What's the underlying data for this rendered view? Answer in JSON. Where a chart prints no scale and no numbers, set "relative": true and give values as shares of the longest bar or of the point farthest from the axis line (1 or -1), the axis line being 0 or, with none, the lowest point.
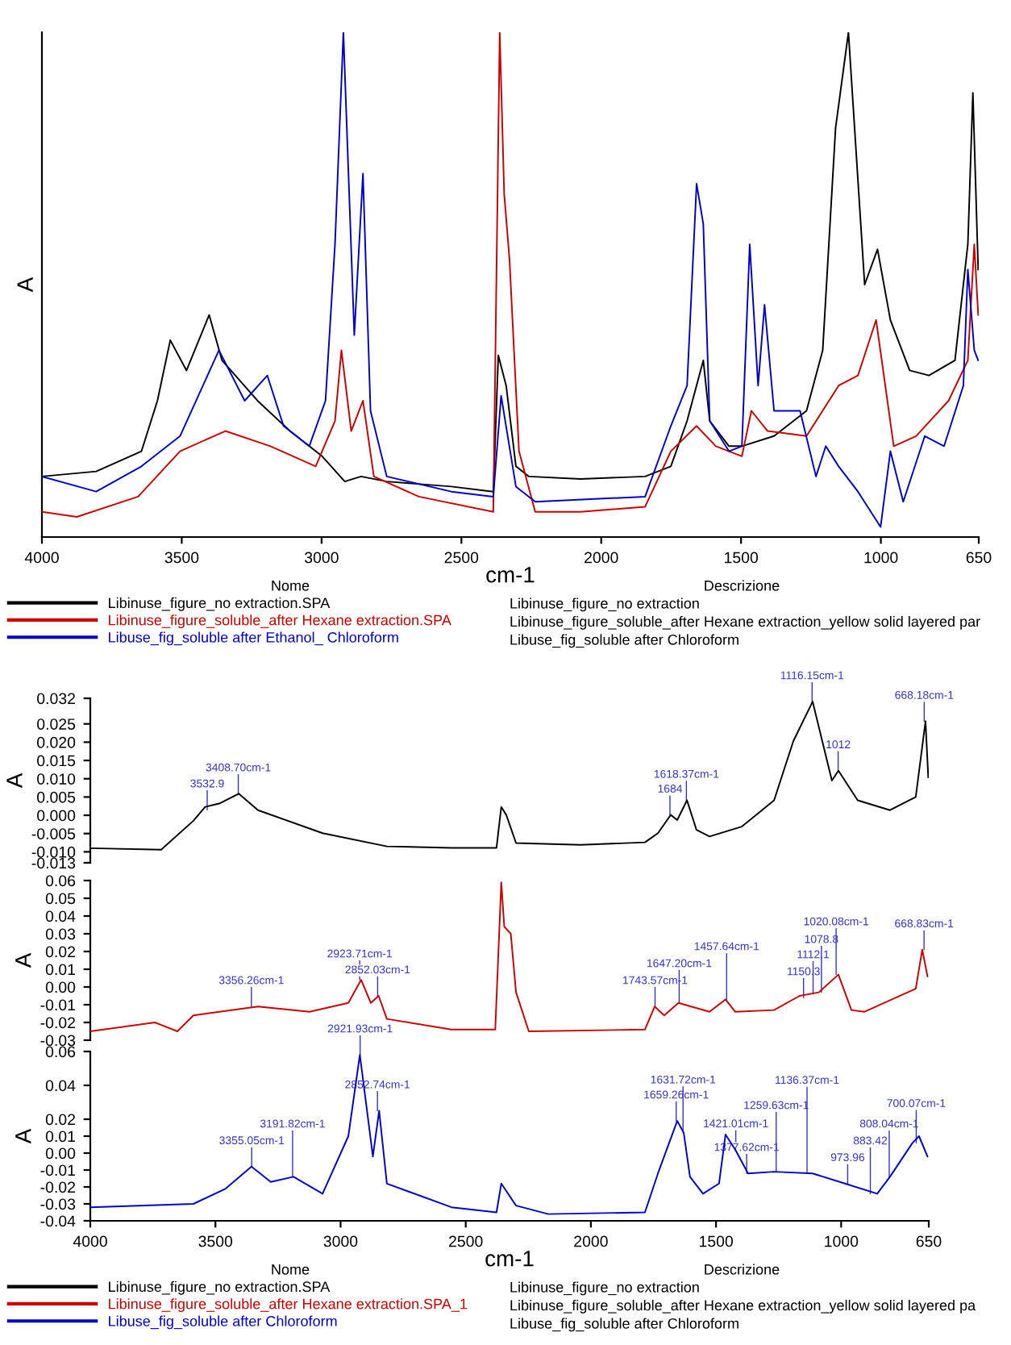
{
  "chart_data": [
    {
      "type": "line",
      "relative": true,
      "ylabel": "A",
      "xlabel": "cm-1",
      "xlim": [
        4000,
        650
      ],
      "xticks": [
        4000,
        3500,
        3000,
        2500,
        2000,
        1500,
        1000,
        650
      ],
      "tick_labels": "x",
      "legend": "bottom",
      "series": [
        {
          "name": "Libinuse_figure_no extraction.SPA",
          "color": "#000000",
          "x": [
            4000,
            3806,
            3644,
            3587,
            3541,
            3483,
            3402,
            3356,
            3229,
            3113,
            2998,
            2917,
            2859,
            2767,
            2536,
            2386,
            2368,
            2340,
            2305,
            2259,
            2074,
            1843,
            1751,
            1693,
            1635,
            1612,
            1543,
            1497,
            1382,
            1266,
            1208,
            1162,
            1116,
            1058,
            1012,
            966,
            897,
            828,
            735,
            689,
            671,
            652
          ],
          "values": [
            0.12,
            0.13,
            0.17,
            0.27,
            0.39,
            0.33,
            0.44,
            0.35,
            0.27,
            0.21,
            0.16,
            0.11,
            0.12,
            0.11,
            0.1,
            0.09,
            0.36,
            0.3,
            0.14,
            0.12,
            0.115,
            0.12,
            0.14,
            0.23,
            0.35,
            0.23,
            0.18,
            0.18,
            0.2,
            0.25,
            0.37,
            0.81,
            1.0,
            0.5,
            0.57,
            0.43,
            0.33,
            0.32,
            0.35,
            0.58,
            0.88,
            0.53
          ]
        },
        {
          "name": "Libinuse_figure_soluble_after Hexane extraction.SPA",
          "color": "#cc0000",
          "x": [
            4000,
            3875,
            3656,
            3506,
            3344,
            3183,
            3021,
            2952,
            2929,
            2894,
            2852,
            2813,
            2652,
            2386,
            2363,
            2347,
            2328,
            2294,
            2236,
            2074,
            1843,
            1751,
            1659,
            1590,
            1497,
            1463,
            1405,
            1266,
            1151,
            1082,
            1017,
            954,
            874,
            758,
            689,
            666,
            652
          ],
          "values": [
            0.05,
            0.04,
            0.08,
            0.17,
            0.21,
            0.18,
            0.14,
            0.23,
            0.37,
            0.21,
            0.27,
            0.12,
            0.08,
            0.05,
            1.0,
            0.68,
            0.55,
            0.17,
            0.05,
            0.05,
            0.06,
            0.17,
            0.22,
            0.18,
            0.16,
            0.25,
            0.21,
            0.2,
            0.3,
            0.32,
            0.43,
            0.18,
            0.2,
            0.27,
            0.35,
            0.58,
            0.44
          ]
        },
        {
          "name": "Libuse_fig_soluble after Ethanol_ Chloroform",
          "color": "#0000cc",
          "x": [
            4000,
            3806,
            3644,
            3506,
            3367,
            3275,
            3194,
            3136,
            3044,
            2986,
            2952,
            2922,
            2883,
            2852,
            2825,
            2767,
            2536,
            2386,
            2358,
            2305,
            2236,
            1843,
            1751,
            1693,
            1659,
            1635,
            1612,
            1543,
            1497,
            1469,
            1439,
            1416,
            1382,
            1289,
            1232,
            1197,
            1151,
            1082,
            1001,
            966,
            920,
            843,
            774,
            705,
            689,
            666,
            652
          ],
          "values": [
            0.12,
            0.09,
            0.14,
            0.2,
            0.37,
            0.27,
            0.32,
            0.22,
            0.18,
            0.27,
            0.58,
            1.0,
            0.4,
            0.72,
            0.25,
            0.12,
            0.09,
            0.08,
            0.28,
            0.1,
            0.07,
            0.08,
            0.22,
            0.3,
            0.7,
            0.62,
            0.23,
            0.17,
            0.18,
            0.58,
            0.3,
            0.46,
            0.25,
            0.25,
            0.12,
            0.18,
            0.14,
            0.09,
            0.02,
            0.17,
            0.07,
            0.2,
            0.18,
            0.3,
            0.53,
            0.37,
            0.35
          ]
        }
      ],
      "annotations": [
        "Nome",
        "Descrizione",
        "Libinuse_figure_no extraction",
        "Libinuse_figure_soluble_after Hexane extraction_yellow solid layered par",
        "Libuse_fig_soluble after Chloroform"
      ]
    },
    {
      "type": "line",
      "ylabel": "A",
      "xlim": [
        4000,
        650
      ],
      "ylim": [
        -0.013,
        0.032
      ],
      "tick_labels": "y",
      "yticks": [
        0.032,
        0.025,
        {
          "value": 0.02,
          "label": "0.020"
        },
        0.015,
        {
          "value": 0.01,
          "label": "0.010"
        },
        0.005,
        {
          "value": 0,
          "label": "0.000"
        },
        -0.005,
        {
          "value": -0.01,
          "label": "-0.010"
        },
        -0.013
      ],
      "series": [
        {
          "name": "Libinuse_figure_no extraction.SPA",
          "color": "#000000",
          "x": [
            4000,
            3717,
            3588,
            3541,
            3485,
            3407,
            3330,
            3072,
            2815,
            2557,
            2377,
            2358,
            2338,
            2299,
            2042,
            1784,
            1732,
            1681,
            1655,
            1616,
            1578,
            1526,
            1397,
            1268,
            1191,
            1114,
            1037,
            1011,
            934,
            805,
            702,
            663,
            652
          ],
          "values": [
            -0.009,
            -0.0094,
            -0.0015,
            0.0023,
            0.0032,
            0.0059,
            0.0014,
            -0.0049,
            -0.0085,
            -0.0089,
            -0.0089,
            0.0023,
            0.0001,
            -0.0076,
            -0.0081,
            -0.0074,
            -0.0049,
            0.0001,
            -0.0013,
            0.0041,
            -0.004,
            -0.0058,
            -0.0031,
            0.0041,
            0.0203,
            0.0311,
            0.0095,
            0.0122,
            0.0041,
            0.0014,
            0.005,
            0.0257,
            0.0104
          ]
        }
      ],
      "annotations": [
        {
          "text": "3532.9",
          "x": 3532.9,
          "y": 0.0015
        },
        {
          "text": "3408.70cm-1",
          "x": 3408.7,
          "y": 0.0059
        },
        {
          "text": "1684",
          "x": 1684,
          "y": 0.0001
        },
        {
          "text": "1618.37cm-1",
          "x": 1618.37,
          "y": 0.0041
        },
        {
          "text": "1116.15cm-1",
          "x": 1116.15,
          "y": 0.0311
        },
        {
          "text": "1012",
          "x": 1012,
          "y": 0.0122
        },
        {
          "text": "668.18cm-1",
          "x": 668.18,
          "y": 0.0257
        }
      ]
    },
    {
      "type": "line",
      "ylabel": "A",
      "xlim": [
        4000,
        650
      ],
      "ylim": [
        -0.03,
        0.06
      ],
      "tick_labels": "y",
      "yticks": [
        0.06,
        0.05,
        0.04,
        0.03,
        0.02,
        0.01,
        {
          "value": 0,
          "label": "0.00"
        },
        -0.01,
        -0.02,
        -0.03
      ],
      "series": [
        {
          "name": "Libinuse_figure_soluble_after Hexane extraction.SPA_1",
          "color": "#cc0000",
          "x": [
            4000,
            3742,
            3652,
            3588,
            3330,
            3124,
            2969,
            2918,
            2879,
            2848,
            2815,
            2557,
            2382,
            2358,
            2346,
            2320,
            2299,
            2248,
            1784,
            1745,
            1707,
            1650,
            1526,
            1462,
            1423,
            1268,
            1166,
            1089,
            1011,
            959,
            908,
            702,
            676,
            655
          ],
          "values": [
            -0.025,
            -0.02,
            -0.025,
            -0.016,
            -0.011,
            -0.014,
            -0.009,
            0.004,
            -0.009,
            -0.005,
            -0.018,
            -0.024,
            -0.024,
            0.059,
            0.034,
            0.03,
            -0.003,
            -0.025,
            -0.024,
            -0.011,
            -0.016,
            -0.009,
            -0.014,
            -0.007,
            -0.014,
            -0.013,
            -0.005,
            -0.003,
            0.007,
            -0.013,
            -0.014,
            -0.001,
            0.021,
            0.006
          ]
        }
      ],
      "annotations": [
        {
          "text": "3356.26cm-1",
          "x": 3356.26,
          "y": -0.011
        },
        {
          "text": "2923.71cm-1",
          "x": 2923.71,
          "y": 0.004
        },
        {
          "text": "2852.03cm-1",
          "x": 2852.03,
          "y": -0.005
        },
        {
          "text": "1743.57cm-1",
          "x": 1743.57,
          "y": -0.011
        },
        {
          "text": "1647.20cm-1",
          "x": 1647.2,
          "y": -0.009
        },
        {
          "text": "1457.64cm-1",
          "x": 1457.64,
          "y": -0.007
        },
        {
          "text": "1150.3",
          "x": 1150.3,
          "y": -0.006
        },
        {
          "text": "1112.1",
          "x": 1112.1,
          "y": -0.004
        },
        {
          "text": "1078.8",
          "x": 1078.8,
          "y": -0.003
        },
        {
          "text": "1020.08cm-1",
          "x": 1020.08,
          "y": 0.007
        },
        {
          "text": "668.83cm-1",
          "x": 668.83,
          "y": 0.021
        }
      ]
    },
    {
      "type": "line",
      "ylabel": "A",
      "xlabel": "cm-1",
      "xlim": [
        4000,
        650
      ],
      "ylim": [
        -0.04,
        0.06
      ],
      "xticks": [
        4000,
        3500,
        3000,
        2500,
        2000,
        1500,
        1000,
        650
      ],
      "legend": "bottom",
      "yticks": [
        0.06,
        0.04,
        0.02,
        0.01,
        {
          "value": 0,
          "label": "0.00"
        },
        -0.01,
        -0.02,
        -0.03,
        -0.04
      ],
      "series": [
        {
          "name": "Libuse_fig_soluble after Chloroform",
          "color": "#0000cc",
          "x": [
            4000,
            3588,
            3459,
            3356,
            3279,
            3188,
            3072,
            2969,
            2923,
            2871,
            2846,
            2815,
            2557,
            2377,
            2358,
            2299,
            2170,
            1784,
            1732,
            1655,
            1629,
            1604,
            1552,
            1488,
            1462,
            1423,
            1372,
            1268,
            1114,
            985,
            856,
            805,
            715,
            689,
            655
          ],
          "values": [
            -0.032,
            -0.03,
            -0.021,
            -0.008,
            -0.017,
            -0.014,
            -0.024,
            0.01,
            0.058,
            -0.002,
            0.025,
            -0.018,
            -0.032,
            -0.035,
            -0.018,
            -0.031,
            -0.036,
            -0.035,
            -0.012,
            0.019,
            0.012,
            -0.014,
            -0.024,
            -0.018,
            0.011,
            0.002,
            -0.012,
            -0.011,
            -0.012,
            -0.018,
            -0.024,
            -0.014,
            0.006,
            0.01,
            -0.002
          ]
        }
      ],
      "annotations": [
        {
          "text": "3355.05cm-1",
          "x": 3355.05,
          "y": -0.008
        },
        {
          "text": "3191.82cm-1",
          "x": 3191.82,
          "y": -0.014
        },
        {
          "text": "2921.93cm-1",
          "x": 2921.93,
          "y": 0.058
        },
        {
          "text": "2852.74cm-1",
          "x": 2852.74,
          "y": 0.025
        },
        {
          "text": "1659.26cm-1",
          "x": 1659.26,
          "y": 0.019
        },
        {
          "text": "1631.72cm-1",
          "x": 1631.72,
          "y": 0.012
        },
        {
          "text": "1421.01cm-1",
          "x": 1421.01,
          "y": 0.002
        },
        {
          "text": "1377.62cm-1",
          "x": 1377.62,
          "y": -0.012
        },
        {
          "text": "1259.63cm-1",
          "x": 1259.63,
          "y": -0.011
        },
        {
          "text": "1136.37cm-1",
          "x": 1136.37,
          "y": -0.012
        },
        {
          "text": "973.96",
          "x": 973.96,
          "y": -0.018
        },
        {
          "text": "883.42",
          "x": 883.42,
          "y": -0.024
        },
        {
          "text": "808.04cm-1",
          "x": 808.04,
          "y": -0.014
        },
        {
          "text": "700.07cm-1",
          "x": 700.07,
          "y": 0.006
        },
        "Nome",
        "Descrizione",
        "Libinuse_figure_no extraction",
        "Libinuse_figure_soluble_after Hexane extraction_yellow solid layered pa",
        "Libuse_fig_soluble after Chloroform"
      ]
    }
  ]
}
